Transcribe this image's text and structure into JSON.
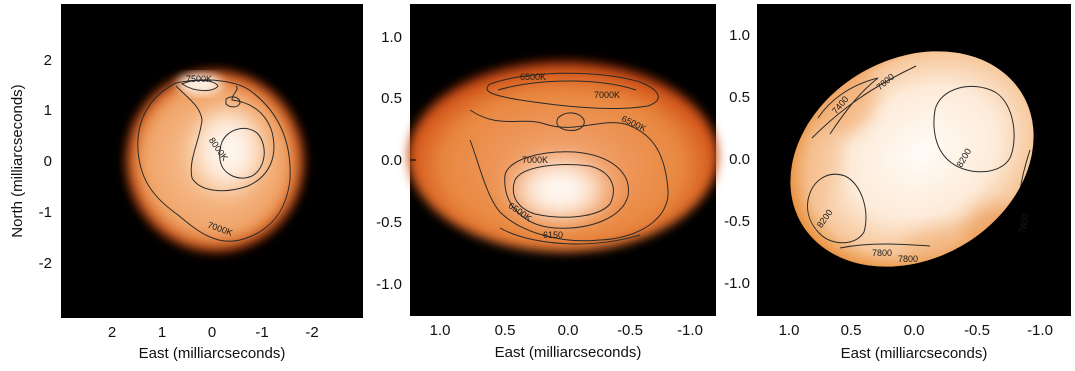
{
  "panels": [
    {
      "id": "panel-1",
      "xlabel": "East (milliarcseconds)",
      "ylabel": "North (milliarcseconds)",
      "xticks": [
        "2",
        "1",
        "0",
        "-1",
        "-2"
      ],
      "yticks": [
        "2",
        "1",
        "0",
        "-1",
        "-2"
      ],
      "contours": [
        "7500K",
        "8000K",
        "7000K"
      ]
    },
    {
      "id": "panel-2",
      "xlabel": "East (milliarcseconds)",
      "ylabel": "",
      "xticks": [
        "1.0",
        "0.5",
        "0.0",
        "-0.5",
        "-1.0"
      ],
      "yticks": [
        "1.0",
        "0.5",
        "0.0",
        "-0.5",
        "-1.0"
      ],
      "contours": [
        "6500K",
        "7000K",
        "6500K",
        "7000K",
        "6500K",
        "6150"
      ]
    },
    {
      "id": "panel-3",
      "xlabel": "East (milliarcseconds)",
      "ylabel": "",
      "xticks": [
        "1.0",
        "0.5",
        "0.0",
        "-0.5",
        "-1.0"
      ],
      "yticks": [
        "1.0",
        "0.5",
        "0.0",
        "-0.5",
        "-1.0"
      ],
      "contours": [
        "7400",
        "7800",
        "8200",
        "8200",
        "7800",
        "7800",
        "7800"
      ]
    }
  ],
  "colors": {
    "background": "#000000",
    "hot": "#fffaf3",
    "warm": "#f4b27a",
    "cool": "#d9651f",
    "limb": "#8a1e05"
  }
}
